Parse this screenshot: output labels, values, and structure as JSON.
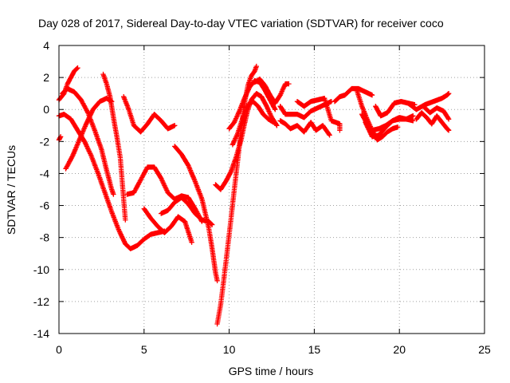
{
  "chart_data": {
    "type": "scatter",
    "title": "Day 028 of 2017, Sidereal Day-to-day VTEC variation (SDTVAR) for receiver coco",
    "xlabel": "GPS time / hours",
    "ylabel": "SDTVAR / TECUs",
    "xlim": [
      0,
      25
    ],
    "ylim": [
      -14,
      4
    ],
    "xticks": [
      0,
      5,
      10,
      15,
      20,
      25
    ],
    "yticks": [
      -14,
      -12,
      -10,
      -8,
      -6,
      -4,
      -2,
      0,
      2,
      4
    ],
    "xtick_labels": [
      "0",
      "5",
      "10",
      "15",
      "20",
      "25"
    ],
    "ytick_labels": [
      "-14",
      "-12",
      "-10",
      "-8",
      "-6",
      "-4",
      "-2",
      "0",
      "2",
      "4"
    ],
    "grid": true,
    "marker": "plus",
    "color": "#ff0000",
    "series": [
      {
        "points": [
          [
            0.0,
            0.6
          ],
          [
            0.3,
            1.0
          ],
          [
            0.5,
            1.6
          ],
          [
            0.7,
            2.0
          ],
          [
            0.9,
            2.4
          ],
          [
            1.1,
            2.6
          ]
        ]
      },
      {
        "points": [
          [
            0.2,
            1.0
          ],
          [
            0.5,
            1.3
          ],
          [
            0.9,
            1.1
          ],
          [
            1.3,
            0.6
          ],
          [
            1.7,
            -0.2
          ],
          [
            2.1,
            -1.3
          ],
          [
            2.5,
            -2.5
          ],
          [
            2.8,
            -3.8
          ],
          [
            3.1,
            -5.0
          ],
          [
            3.2,
            -5.3
          ]
        ]
      },
      {
        "points": [
          [
            0.0,
            -0.4
          ],
          [
            0.3,
            -0.3
          ],
          [
            0.7,
            -0.6
          ],
          [
            1.1,
            -1.3
          ],
          [
            1.5,
            -2.0
          ],
          [
            1.9,
            -2.9
          ],
          [
            2.3,
            -4.0
          ],
          [
            2.7,
            -5.2
          ],
          [
            3.1,
            -6.4
          ],
          [
            3.5,
            -7.5
          ],
          [
            3.9,
            -8.4
          ],
          [
            4.2,
            -8.7
          ],
          [
            4.6,
            -8.5
          ],
          [
            5.0,
            -8.1
          ],
          [
            5.4,
            -7.8
          ],
          [
            5.8,
            -7.7
          ],
          [
            6.2,
            -7.6
          ]
        ]
      },
      {
        "points": [
          [
            0.0,
            -1.9
          ],
          [
            0.1,
            -1.7
          ]
        ]
      },
      {
        "points": [
          [
            0.4,
            -3.7
          ],
          [
            0.8,
            -2.9
          ],
          [
            1.2,
            -1.9
          ],
          [
            1.6,
            -0.9
          ],
          [
            2.0,
            0.0
          ],
          [
            2.4,
            0.5
          ],
          [
            2.8,
            0.7
          ],
          [
            3.1,
            0.5
          ]
        ]
      },
      {
        "points": [
          [
            2.6,
            2.2
          ],
          [
            2.8,
            1.6
          ],
          [
            3.0,
            0.8
          ],
          [
            3.2,
            -0.5
          ],
          [
            3.4,
            -1.7
          ],
          [
            3.6,
            -3.0
          ],
          [
            3.7,
            -4.3
          ],
          [
            3.8,
            -5.6
          ],
          [
            3.9,
            -6.9
          ]
        ]
      },
      {
        "points": [
          [
            3.8,
            0.8
          ],
          [
            4.1,
            0.0
          ],
          [
            4.4,
            -1.0
          ],
          [
            4.8,
            -1.4
          ],
          [
            5.2,
            -0.9
          ],
          [
            5.6,
            -0.3
          ],
          [
            6.0,
            -0.7
          ],
          [
            6.4,
            -1.2
          ],
          [
            6.8,
            -1.0
          ]
        ]
      },
      {
        "points": [
          [
            4.0,
            -5.3
          ],
          [
            4.4,
            -5.2
          ],
          [
            4.8,
            -4.4
          ],
          [
            5.2,
            -3.6
          ],
          [
            5.6,
            -3.6
          ],
          [
            6.0,
            -4.3
          ],
          [
            6.4,
            -5.2
          ],
          [
            6.8,
            -5.6
          ],
          [
            7.2,
            -5.4
          ],
          [
            7.6,
            -5.5
          ],
          [
            8.0,
            -6.2
          ],
          [
            8.4,
            -7.0
          ]
        ]
      },
      {
        "points": [
          [
            5.0,
            -6.2
          ],
          [
            5.4,
            -6.8
          ],
          [
            5.8,
            -7.3
          ],
          [
            6.2,
            -7.7
          ],
          [
            6.6,
            -7.3
          ],
          [
            7.0,
            -6.7
          ],
          [
            7.4,
            -7.0
          ],
          [
            7.8,
            -8.3
          ]
        ]
      },
      {
        "points": [
          [
            6.0,
            -6.5
          ],
          [
            6.4,
            -6.3
          ],
          [
            6.8,
            -5.8
          ],
          [
            7.2,
            -5.5
          ],
          [
            7.6,
            -5.9
          ],
          [
            8.0,
            -6.5
          ],
          [
            8.4,
            -6.9
          ],
          [
            8.8,
            -7.0
          ],
          [
            9.0,
            -7.2
          ]
        ]
      },
      {
        "points": [
          [
            6.8,
            -2.3
          ],
          [
            7.2,
            -2.8
          ],
          [
            7.6,
            -3.5
          ],
          [
            8.0,
            -4.5
          ],
          [
            8.4,
            -5.6
          ],
          [
            8.8,
            -7.4
          ],
          [
            9.0,
            -8.7
          ],
          [
            9.2,
            -10.2
          ],
          [
            9.3,
            -10.7
          ]
        ]
      },
      {
        "points": [
          [
            9.3,
            -13.4
          ],
          [
            9.5,
            -12.2
          ],
          [
            9.7,
            -10.5
          ],
          [
            9.9,
            -8.7
          ],
          [
            10.1,
            -6.9
          ],
          [
            10.3,
            -5.0
          ],
          [
            10.5,
            -3.2
          ],
          [
            10.7,
            -1.3
          ],
          [
            10.9,
            0.4
          ],
          [
            11.1,
            1.5
          ],
          [
            11.3,
            2.1
          ],
          [
            11.5,
            2.4
          ],
          [
            11.6,
            2.7
          ]
        ]
      },
      {
        "points": [
          [
            9.2,
            -4.7
          ],
          [
            9.5,
            -5.0
          ],
          [
            9.8,
            -4.5
          ],
          [
            10.1,
            -3.9
          ],
          [
            10.4,
            -3.0
          ],
          [
            10.7,
            -1.9
          ],
          [
            10.9,
            -0.9
          ],
          [
            11.1,
            0.0
          ],
          [
            11.3,
            0.6
          ],
          [
            11.6,
            1.0
          ],
          [
            11.9,
            0.8
          ],
          [
            12.2,
            0.2
          ],
          [
            12.5,
            -0.5
          ],
          [
            12.8,
            -1.0
          ]
        ]
      },
      {
        "points": [
          [
            10.0,
            -1.2
          ],
          [
            10.3,
            -0.8
          ],
          [
            10.6,
            -0.1
          ],
          [
            10.9,
            0.7
          ],
          [
            11.2,
            1.4
          ],
          [
            11.5,
            1.8
          ],
          [
            11.8,
            1.7
          ],
          [
            12.1,
            1.2
          ],
          [
            12.4,
            0.6
          ],
          [
            12.7,
            0.0
          ]
        ]
      },
      {
        "points": [
          [
            10.2,
            -2.2
          ],
          [
            10.5,
            -1.5
          ],
          [
            10.8,
            -0.5
          ],
          [
            11.1,
            0.3
          ],
          [
            11.4,
            0.5
          ],
          [
            11.7,
            0.2
          ],
          [
            12.0,
            -0.3
          ],
          [
            12.3,
            -0.6
          ],
          [
            12.6,
            -0.8
          ]
        ]
      },
      {
        "points": [
          [
            11.5,
            1.7
          ],
          [
            11.8,
            1.9
          ],
          [
            12.1,
            1.5
          ],
          [
            12.4,
            0.9
          ],
          [
            12.7,
            0.4
          ],
          [
            13.0,
            0.9
          ],
          [
            13.3,
            1.6
          ],
          [
            13.5,
            1.6
          ]
        ]
      },
      {
        "points": [
          [
            13.0,
            0.2
          ],
          [
            13.3,
            -0.3
          ],
          [
            13.6,
            -0.3
          ],
          [
            14.0,
            -0.3
          ],
          [
            14.4,
            -0.5
          ],
          [
            14.8,
            -0.1
          ],
          [
            15.2,
            0.1
          ],
          [
            15.6,
            0.3
          ],
          [
            16.0,
            0.5
          ]
        ]
      },
      {
        "points": [
          [
            13.0,
            -0.7
          ],
          [
            13.3,
            -0.9
          ],
          [
            13.6,
            -1.2
          ],
          [
            14.0,
            -1.0
          ],
          [
            14.4,
            -1.4
          ],
          [
            14.8,
            -0.8
          ],
          [
            15.1,
            -1.3
          ],
          [
            15.5,
            -1.0
          ],
          [
            15.9,
            -1.6
          ]
        ]
      },
      {
        "points": [
          [
            14.0,
            0.5
          ],
          [
            14.4,
            0.2
          ],
          [
            14.8,
            0.5
          ],
          [
            15.2,
            0.6
          ],
          [
            15.6,
            0.7
          ],
          [
            16.0,
            -0.7
          ],
          [
            16.5,
            -0.9
          ],
          [
            16.5,
            -1.3
          ]
        ]
      },
      {
        "points": [
          [
            16.2,
            0.5
          ],
          [
            16.5,
            0.8
          ],
          [
            16.8,
            0.9
          ],
          [
            17.2,
            1.3
          ],
          [
            17.6,
            1.3
          ],
          [
            18.0,
            1.1
          ],
          [
            18.4,
            0.9
          ]
        ]
      },
      {
        "points": [
          [
            17.5,
            1.2
          ],
          [
            17.8,
            0.2
          ],
          [
            18.1,
            -0.6
          ],
          [
            18.4,
            -1.3
          ],
          [
            18.7,
            -1.9
          ],
          [
            19.0,
            -1.7
          ],
          [
            19.3,
            -1.4
          ],
          [
            19.6,
            -1.2
          ],
          [
            19.9,
            -1.1
          ]
        ]
      },
      {
        "points": [
          [
            17.8,
            -0.3
          ],
          [
            18.1,
            -0.9
          ],
          [
            18.4,
            -1.3
          ],
          [
            18.8,
            -1.2
          ],
          [
            19.2,
            -1.0
          ],
          [
            19.6,
            -0.7
          ],
          [
            20.0,
            -0.6
          ],
          [
            20.4,
            -0.6
          ],
          [
            20.8,
            -0.7
          ]
        ]
      },
      {
        "points": [
          [
            18.0,
            -0.8
          ],
          [
            18.4,
            -1.7
          ],
          [
            18.8,
            -1.6
          ],
          [
            19.2,
            -1.1
          ],
          [
            19.6,
            -0.7
          ],
          [
            20.0,
            -0.5
          ],
          [
            20.4,
            -0.6
          ],
          [
            20.8,
            -0.4
          ]
        ]
      },
      {
        "points": [
          [
            18.6,
            0.2
          ],
          [
            18.9,
            -0.4
          ],
          [
            19.3,
            -0.2
          ],
          [
            19.7,
            0.4
          ],
          [
            20.1,
            0.5
          ],
          [
            20.5,
            0.4
          ],
          [
            20.9,
            0.3
          ]
        ]
      },
      {
        "points": [
          [
            20.5,
            0.4
          ],
          [
            21.0,
            0.0
          ],
          [
            21.5,
            0.3
          ],
          [
            22.0,
            0.5
          ],
          [
            22.5,
            0.7
          ],
          [
            22.8,
            0.9
          ],
          [
            22.9,
            1.0
          ]
        ]
      },
      {
        "points": [
          [
            21.0,
            -0.6
          ],
          [
            21.3,
            -0.2
          ],
          [
            21.6,
            -0.5
          ],
          [
            21.9,
            -0.9
          ],
          [
            22.2,
            -0.4
          ],
          [
            22.5,
            -0.8
          ],
          [
            22.8,
            -1.2
          ],
          [
            22.9,
            -1.3
          ]
        ]
      },
      {
        "points": [
          [
            21.4,
            0.2
          ],
          [
            21.8,
            -0.2
          ],
          [
            22.2,
            0.1
          ],
          [
            22.6,
            -0.1
          ],
          [
            22.9,
            -0.6
          ]
        ]
      }
    ]
  }
}
